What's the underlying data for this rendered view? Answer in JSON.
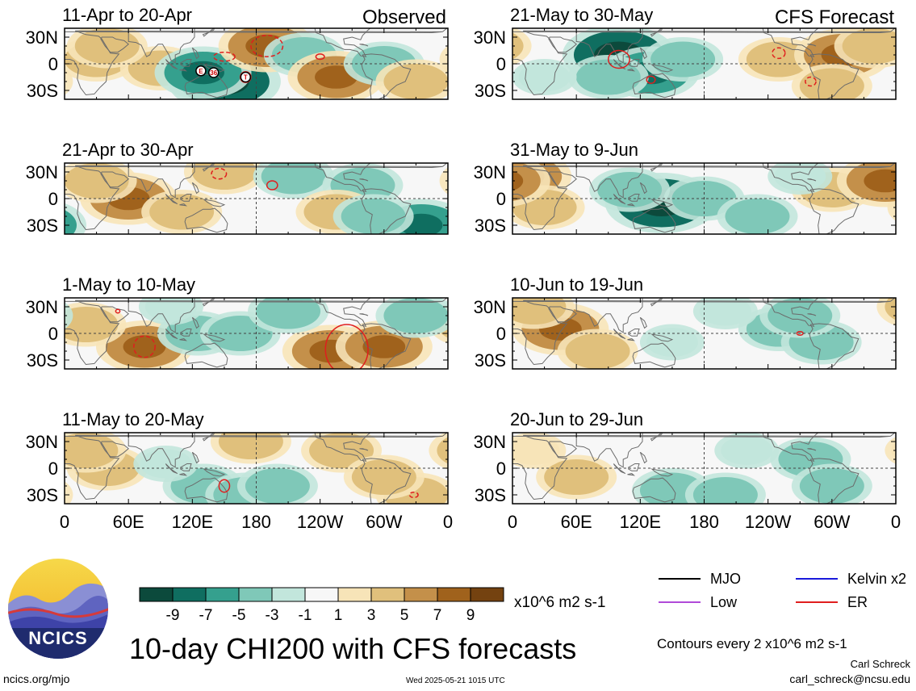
{
  "panels": [
    {
      "id": "p1",
      "period": "11-Apr to 20-Apr",
      "column": "left",
      "row": 0,
      "anomaly_blobs": [
        {
          "lon": 30,
          "lat": 5,
          "value": 3
        },
        {
          "lon": 90,
          "lat": -5,
          "value": 3
        },
        {
          "lon": 150,
          "lat": -20,
          "value": -7
        },
        {
          "lon": 130,
          "lat": -10,
          "value": -5
        },
        {
          "lon": 190,
          "lat": 20,
          "value": 5
        },
        {
          "lon": 225,
          "lat": 10,
          "value": -3
        },
        {
          "lon": 255,
          "lat": -15,
          "value": 5
        },
        {
          "lon": 300,
          "lat": 0,
          "value": -3
        },
        {
          "lon": 330,
          "lat": -20,
          "value": 3
        },
        {
          "lon": 40,
          "lat": 20,
          "value": 3
        }
      ],
      "contours": [
        {
          "type": "ER",
          "lon": 190,
          "lat": 20,
          "rlon": 15,
          "rlat": 12,
          "dashed": true
        },
        {
          "type": "ER",
          "lon": 150,
          "lat": 8,
          "rlon": 10,
          "rlat": 5,
          "dashed": true
        },
        {
          "type": "ER",
          "lon": 240,
          "lat": 8,
          "rlon": 4,
          "rlat": 3,
          "dashed": false
        },
        {
          "type": "ER",
          "lon": 170,
          "lat": -15,
          "rlon": 5,
          "rlat": 6,
          "dashed": false
        }
      ],
      "markers": [
        {
          "label": "E",
          "lon": 128,
          "lat": -8
        },
        {
          "label": "36",
          "lon": 140,
          "lat": -10
        },
        {
          "label": "T",
          "lon": 170,
          "lat": -15
        }
      ]
    },
    {
      "id": "p2",
      "period": "21-Apr to 30-Apr",
      "column": "left",
      "row": 1,
      "anomaly_blobs": [
        {
          "lon": 60,
          "lat": 0,
          "value": 5
        },
        {
          "lon": 30,
          "lat": 20,
          "value": 3
        },
        {
          "lon": 110,
          "lat": -15,
          "value": 3
        },
        {
          "lon": 150,
          "lat": 30,
          "value": 3
        },
        {
          "lon": 215,
          "lat": 25,
          "value": -3
        },
        {
          "lon": 280,
          "lat": 15,
          "value": -3
        },
        {
          "lon": 255,
          "lat": -15,
          "value": 3
        },
        {
          "lon": 335,
          "lat": -30,
          "value": -5
        },
        {
          "lon": 290,
          "lat": -20,
          "value": -3
        }
      ],
      "contours": [
        {
          "type": "ER",
          "lon": 145,
          "lat": 28,
          "rlon": 7,
          "rlat": 6,
          "dashed": true
        },
        {
          "type": "ER",
          "lon": 195,
          "lat": 15,
          "rlon": 5,
          "rlat": 5,
          "dashed": false
        }
      ],
      "markers": []
    },
    {
      "id": "p3",
      "period": "1-May to 10-May",
      "column": "left",
      "row": 2,
      "anomaly_blobs": [
        {
          "lon": 75,
          "lat": -15,
          "value": 5
        },
        {
          "lon": 125,
          "lat": 0,
          "value": -3
        },
        {
          "lon": 165,
          "lat": 0,
          "value": -3
        },
        {
          "lon": 250,
          "lat": -20,
          "value": 5
        },
        {
          "lon": 300,
          "lat": -15,
          "value": 5
        },
        {
          "lon": 20,
          "lat": 10,
          "value": 3
        },
        {
          "lon": 210,
          "lat": 25,
          "value": -3
        },
        {
          "lon": 330,
          "lat": 20,
          "value": -3
        },
        {
          "lon": 100,
          "lat": 30,
          "value": -1
        }
      ],
      "contours": [
        {
          "type": "ER",
          "lon": 75,
          "lat": -15,
          "rlon": 10,
          "rlat": 12,
          "dashed": true
        },
        {
          "type": "ER",
          "lon": 265,
          "lat": -18,
          "rlon": 20,
          "rlat": 28,
          "dashed": false
        },
        {
          "type": "ER",
          "lon": 50,
          "lat": 25,
          "rlon": 2,
          "rlat": 2,
          "dashed": false
        }
      ],
      "markers": []
    },
    {
      "id": "p4",
      "period": "11-May to 20-May",
      "column": "left",
      "row": 3,
      "anomaly_blobs": [
        {
          "lon": 40,
          "lat": 0,
          "value": 3
        },
        {
          "lon": 20,
          "lat": 20,
          "value": 3
        },
        {
          "lon": 130,
          "lat": -20,
          "value": -3
        },
        {
          "lon": 170,
          "lat": -30,
          "value": -3
        },
        {
          "lon": 200,
          "lat": -20,
          "value": -3
        },
        {
          "lon": 175,
          "lat": 30,
          "value": 3
        },
        {
          "lon": 260,
          "lat": 20,
          "value": 3
        },
        {
          "lon": 330,
          "lat": -30,
          "value": 3
        },
        {
          "lon": 300,
          "lat": -10,
          "value": 3
        },
        {
          "lon": 95,
          "lat": 5,
          "value": -1
        }
      ],
      "contours": [
        {
          "type": "ER",
          "lon": 150,
          "lat": -20,
          "rlon": 5,
          "rlat": 7,
          "dashed": false
        },
        {
          "type": "ER",
          "lon": 328,
          "lat": -30,
          "rlon": 4,
          "rlat": 3,
          "dashed": true
        }
      ],
      "markers": []
    },
    {
      "id": "p5",
      "period": "21-May to 30-May",
      "column": "right",
      "row": 0,
      "anomaly_blobs": [
        {
          "lon": 100,
          "lat": 10,
          "value": -7
        },
        {
          "lon": 130,
          "lat": -10,
          "value": -5
        },
        {
          "lon": 90,
          "lat": -15,
          "value": -3
        },
        {
          "lon": 160,
          "lat": 5,
          "value": -3
        },
        {
          "lon": 250,
          "lat": 5,
          "value": 3
        },
        {
          "lon": 310,
          "lat": 10,
          "value": 5
        },
        {
          "lon": 340,
          "lat": 20,
          "value": 3
        },
        {
          "lon": 300,
          "lat": -25,
          "value": 3
        },
        {
          "lon": 30,
          "lat": -15,
          "value": -1
        }
      ],
      "contours": [
        {
          "type": "ER",
          "lon": 100,
          "lat": 5,
          "rlon": 10,
          "rlat": 10,
          "dashed": false
        },
        {
          "type": "ER",
          "lon": 250,
          "lat": 12,
          "rlon": 6,
          "rlat": 6,
          "dashed": true
        },
        {
          "type": "ER",
          "lon": 130,
          "lat": -18,
          "rlon": 4,
          "rlat": 4,
          "dashed": false
        },
        {
          "type": "ER",
          "lon": 280,
          "lat": -20,
          "rlon": 5,
          "rlat": 5,
          "dashed": true
        }
      ],
      "markers": []
    },
    {
      "id": "p6",
      "period": "31-May to 9-Jun",
      "column": "right",
      "row": 1,
      "anomaly_blobs": [
        {
          "lon": 10,
          "lat": 25,
          "value": 5
        },
        {
          "lon": 30,
          "lat": -10,
          "value": 3
        },
        {
          "lon": 140,
          "lat": -5,
          "value": -7
        },
        {
          "lon": 110,
          "lat": 10,
          "value": -3
        },
        {
          "lon": 180,
          "lat": 0,
          "value": -3
        },
        {
          "lon": 230,
          "lat": -20,
          "value": -3
        },
        {
          "lon": 300,
          "lat": 10,
          "value": 3
        },
        {
          "lon": 350,
          "lat": 20,
          "value": 5
        },
        {
          "lon": 270,
          "lat": 25,
          "value": -1
        }
      ],
      "contours": [],
      "markers": []
    },
    {
      "id": "p7",
      "period": "10-Jun to 19-Jun",
      "column": "right",
      "row": 2,
      "anomaly_blobs": [
        {
          "lon": 45,
          "lat": 5,
          "value": 5
        },
        {
          "lon": 80,
          "lat": -20,
          "value": 3
        },
        {
          "lon": 20,
          "lat": 30,
          "value": 3
        },
        {
          "lon": 250,
          "lat": 5,
          "value": -3
        },
        {
          "lon": 290,
          "lat": -10,
          "value": -3
        },
        {
          "lon": 270,
          "lat": 20,
          "value": -3
        },
        {
          "lon": 150,
          "lat": -10,
          "value": -1
        },
        {
          "lon": 200,
          "lat": 25,
          "value": -1
        }
      ],
      "contours": [
        {
          "type": "ER",
          "lon": 270,
          "lat": 0,
          "rlon": 3,
          "rlat": 2,
          "dashed": false
        }
      ],
      "markers": []
    },
    {
      "id": "p8",
      "period": "20-Jun to 29-Jun",
      "column": "right",
      "row": 3,
      "anomaly_blobs": [
        {
          "lon": 150,
          "lat": -25,
          "value": -3
        },
        {
          "lon": 200,
          "lat": -30,
          "value": -3
        },
        {
          "lon": 280,
          "lat": 10,
          "value": -3
        },
        {
          "lon": 300,
          "lat": -20,
          "value": -3
        },
        {
          "lon": 60,
          "lat": -10,
          "value": 3
        },
        {
          "lon": 220,
          "lat": 20,
          "value": -1
        },
        {
          "lon": 20,
          "lat": 20,
          "value": 1
        }
      ],
      "contours": [],
      "markers": []
    }
  ],
  "column_headers": {
    "left": "Observed",
    "right": "CFS Forecast"
  },
  "axes": {
    "lat_ticks": [
      "30N",
      "0",
      "30S"
    ],
    "lon_ticks": [
      "0",
      "60E",
      "120E",
      "180",
      "120W",
      "60W",
      "0"
    ],
    "lon_range": [
      0,
      360
    ],
    "lat_range": [
      -40,
      40
    ]
  },
  "colorbar": {
    "colors": [
      "#0c4a3c",
      "#0f6e60",
      "#35a08e",
      "#7fc8b8",
      "#c2e6dc",
      "#f7f7f7",
      "#f7e4b8",
      "#e0c07c",
      "#c4904a",
      "#a0621c",
      "#744210"
    ],
    "labels": [
      "-9",
      "-7",
      "-5",
      "-3",
      "-1",
      "1",
      "3",
      "5",
      "7",
      "9"
    ],
    "units": "x10^6 m2 s-1"
  },
  "legend": [
    {
      "label": "MJO",
      "color": "#000000"
    },
    {
      "label": "Kelvin x2",
      "color": "#1a1adb"
    },
    {
      "label": "Low",
      "color": "#b04ad8"
    },
    {
      "label": "ER",
      "color": "#e01e1e"
    }
  ],
  "contour_note": "Contours every 2 x10^6 m2 s-1",
  "title": "10-day CHI200 with CFS forecasts",
  "logo_text": "NCICS",
  "footer": {
    "url": "ncics.org/mjo",
    "timestamp": "Wed 2025-05-21 1015 UTC",
    "author": "Carl Schreck",
    "email": "carl_schreck@ncsu.edu"
  },
  "colors": {
    "coast": "#6b6b6b",
    "er": "#e01e1e",
    "equator": "#444444"
  }
}
